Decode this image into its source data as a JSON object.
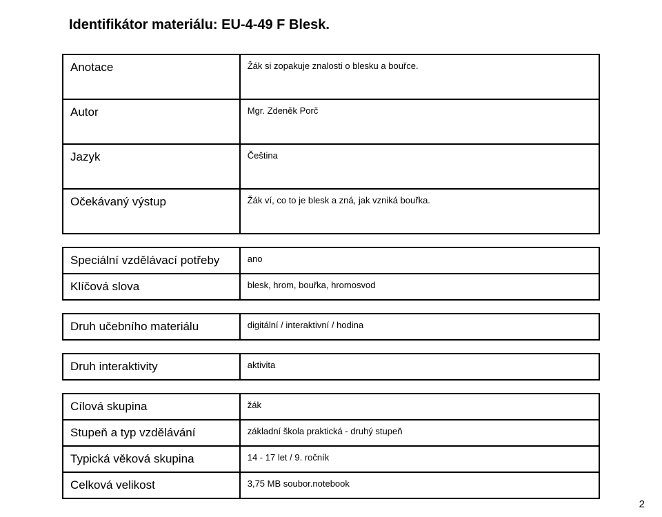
{
  "title": "Identifikátor materiálu: EU-4-49 F Blesk.",
  "tables": {
    "t1": {
      "rows": [
        {
          "label": "Anotace",
          "value": "Žák si zopakuje znalosti o blesku a bouřce."
        },
        {
          "label": "Autor",
          "value": "Mgr. Zdeněk Porč"
        },
        {
          "label": "Jazyk",
          "value": "Čeština"
        },
        {
          "label": "Očekávaný výstup",
          "value": "Žák ví, co to je blesk a zná, jak vzniká bouřka."
        }
      ]
    },
    "t2": {
      "rows": [
        {
          "label": "Speciální vzdělávací potřeby",
          "value": "ano"
        },
        {
          "label": "Klíčová slova",
          "value": "blesk, hrom, bouřka, hromosvod"
        }
      ]
    },
    "t3": {
      "rows": [
        {
          "label": "Druh učebního materiálu",
          "value": "digitální / interaktivní / hodina"
        }
      ]
    },
    "t4": {
      "rows": [
        {
          "label": "Druh interaktivity",
          "value": "aktivita"
        }
      ]
    },
    "t5": {
      "rows": [
        {
          "label": "Cílová skupina",
          "value": "žák"
        },
        {
          "label": "Stupeň a typ vzdělávání",
          "value": "základní škola praktická - druhý stupeň"
        },
        {
          "label": "Typická věková skupina",
          "value": "14 - 17 let / 9. ročník"
        },
        {
          "label": "Celková velikost",
          "value": "3,75 MB  soubor.notebook"
        }
      ]
    }
  },
  "pagenum": "2"
}
